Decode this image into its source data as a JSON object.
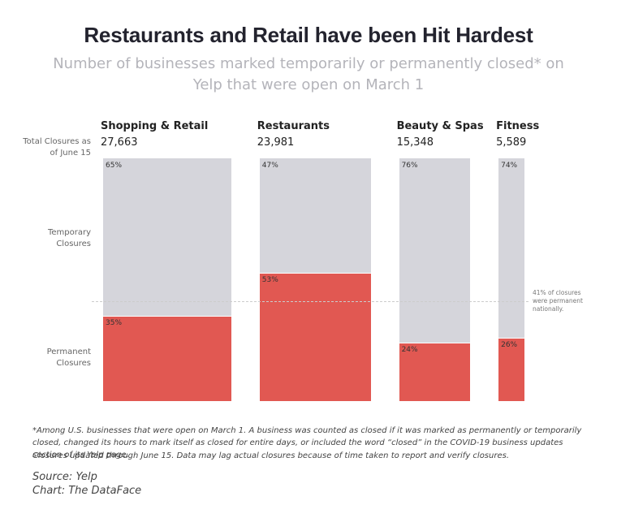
{
  "title": "Restaurants and Retail have been Hit Hardest",
  "subtitle": "Number of businesses marked temporarily or permanently closed* on Yelp that were open on March 1",
  "chart_data": {
    "type": "marimekko",
    "row_label": "Total Closures as of June 15",
    "categories": [
      "Shopping & Retail",
      "Restaurants",
      "Beauty & Spas",
      "Fitness"
    ],
    "totals": [
      27663,
      23981,
      15348,
      5589
    ],
    "totals_labels": [
      "27,663",
      "23,981",
      "15,348",
      "5,589"
    ],
    "ylim": [
      0,
      100
    ],
    "series": [
      {
        "name": "Permanent Closures",
        "color": "#e15852",
        "values": [
          35,
          53,
          24,
          26
        ],
        "value_labels": [
          "35%",
          "53%",
          "24%",
          "26%"
        ]
      },
      {
        "name": "Temporary Closures",
        "color": "#d5d5db",
        "values": [
          65,
          47,
          76,
          74
        ],
        "value_labels": [
          "65%",
          "47%",
          "76%",
          "74%"
        ]
      }
    ],
    "reference_line": {
      "value": 41,
      "label": "41% of closures were permanent nationally."
    }
  },
  "footnotes": [
    "*Among U.S. businesses that were open on March 1. A business was counted as closed if it was marked as permanently or temporarily closed, changed its hours to mark itself as closed for entire days, or included the word “closed” in the COVID-19 business updates section of its Yelp page.",
    "Closures updated through June 15. Data may lag actual closures because of time taken to report and verify closures."
  ],
  "source": "Source: Yelp",
  "credit": "Chart: The DataFace"
}
